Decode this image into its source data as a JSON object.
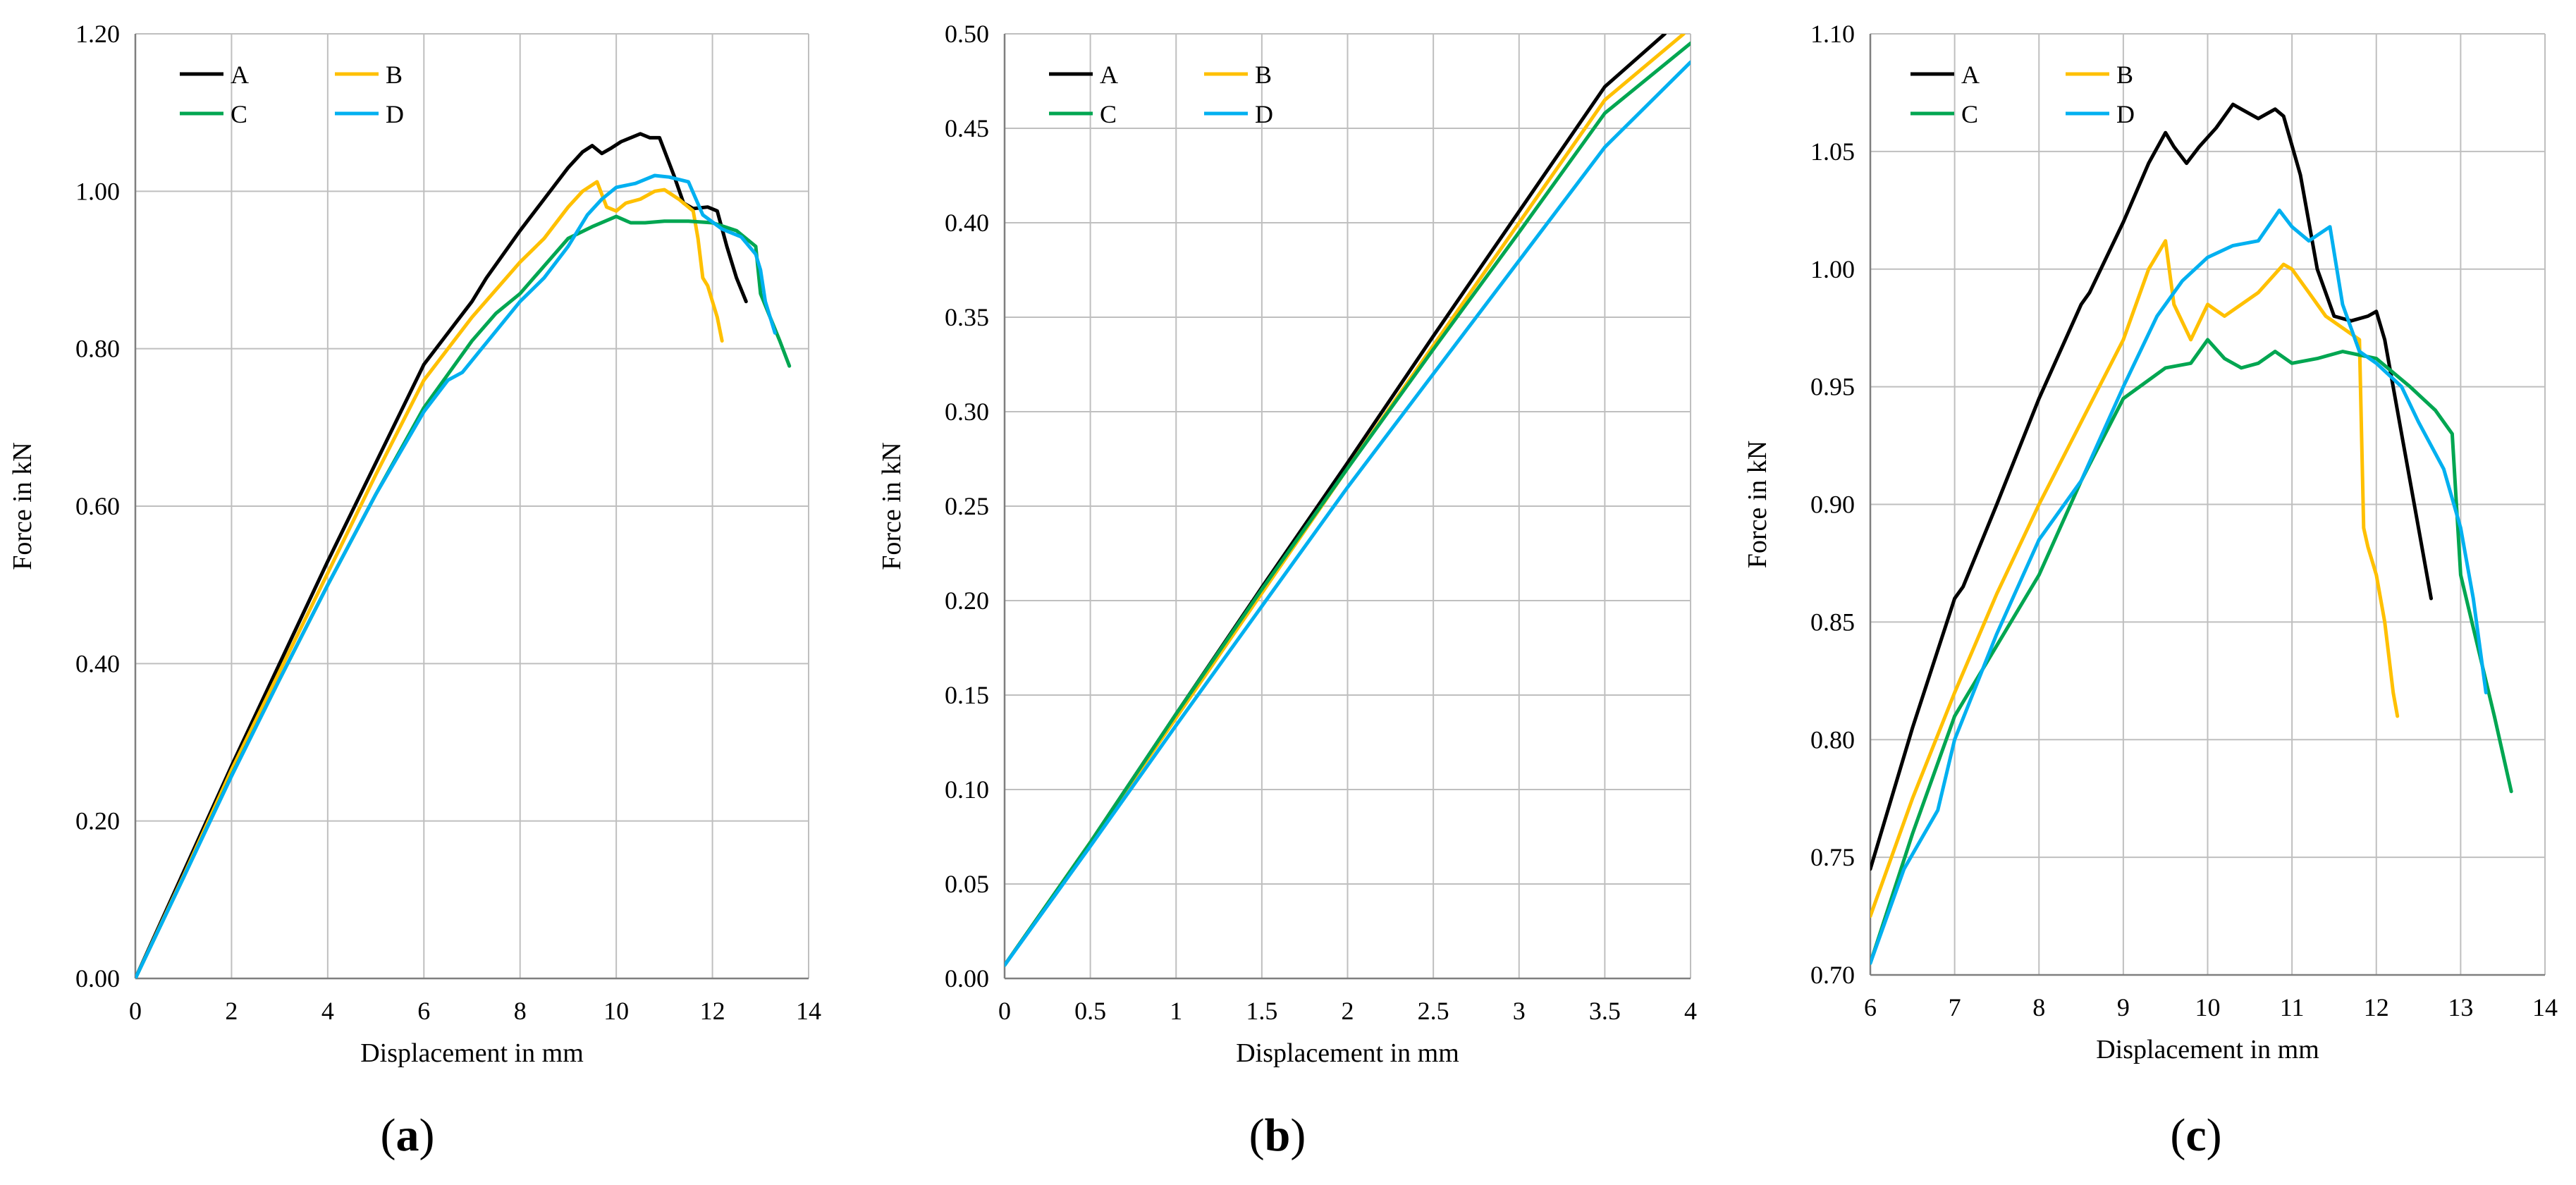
{
  "colors": {
    "A": "#000000",
    "B": "#FFC000",
    "C": "#00A651",
    "D": "#00B0F0",
    "grid": "#BFBFBF"
  },
  "chart_data": [
    {
      "type": "line",
      "panel_label": "a",
      "xlabel": "Displacement in mm",
      "ylabel": "Force in kN",
      "xlim": [
        0,
        14
      ],
      "ylim": [
        0,
        1.2
      ],
      "xticks": [
        "0",
        "2",
        "4",
        "6",
        "8",
        "10",
        "12",
        "14"
      ],
      "yticks": [
        "0.00",
        "0.20",
        "0.40",
        "0.60",
        "0.80",
        "1.00",
        "1.20"
      ],
      "legend": [
        "A",
        "B",
        "C",
        "D"
      ],
      "series": [
        {
          "name": "A",
          "x": [
            0,
            1,
            2,
            3,
            4,
            5,
            6,
            7,
            7.3,
            8,
            8.5,
            9,
            9.3,
            9.5,
            9.7,
            9.9,
            10.1,
            10.3,
            10.5,
            10.7,
            10.9,
            11.2,
            11.4,
            11.6,
            11.9,
            12.1,
            12.3,
            12.5,
            12.7
          ],
          "y": [
            0.0,
            0.135,
            0.27,
            0.4,
            0.53,
            0.655,
            0.78,
            0.86,
            0.89,
            0.95,
            0.99,
            1.03,
            1.05,
            1.058,
            1.048,
            1.055,
            1.063,
            1.068,
            1.073,
            1.068,
            1.068,
            1.02,
            0.985,
            0.978,
            0.98,
            0.975,
            0.93,
            0.89,
            0.86
          ]
        },
        {
          "name": "B",
          "x": [
            0,
            1,
            2,
            3,
            4,
            5,
            6,
            7,
            8,
            8.5,
            9,
            9.3,
            9.6,
            9.8,
            10,
            10.2,
            10.5,
            10.8,
            11,
            11.3,
            11.6,
            11.7,
            11.8,
            11.9,
            12.0,
            12.1,
            12.2
          ],
          "y": [
            0.0,
            0.13,
            0.265,
            0.39,
            0.515,
            0.64,
            0.76,
            0.84,
            0.91,
            0.94,
            0.98,
            1.0,
            1.012,
            0.98,
            0.975,
            0.985,
            0.99,
            1.0,
            1.002,
            0.99,
            0.975,
            0.94,
            0.89,
            0.88,
            0.86,
            0.84,
            0.81
          ]
        },
        {
          "name": "C",
          "x": [
            0,
            1,
            2,
            3,
            4,
            5,
            6,
            7,
            7.5,
            8,
            8.5,
            9,
            9.5,
            10,
            10.3,
            10.6,
            11,
            11.5,
            12,
            12.5,
            12.9,
            13.0,
            13.2,
            13.4,
            13.6
          ],
          "y": [
            0.0,
            0.128,
            0.258,
            0.38,
            0.5,
            0.615,
            0.725,
            0.81,
            0.845,
            0.87,
            0.905,
            0.94,
            0.955,
            0.968,
            0.96,
            0.96,
            0.962,
            0.962,
            0.96,
            0.95,
            0.93,
            0.87,
            0.84,
            0.81,
            0.778
          ]
        },
        {
          "name": "D",
          "x": [
            0,
            1,
            2,
            3,
            4,
            5,
            6,
            6.5,
            6.8,
            7.2,
            7.6,
            8,
            8.5,
            9,
            9.4,
            9.7,
            10,
            10.4,
            10.8,
            11.1,
            11.3,
            11.5,
            11.8,
            12.2,
            12.6,
            12.9,
            13.0,
            13.1,
            13.3
          ],
          "y": [
            0.0,
            0.128,
            0.257,
            0.38,
            0.5,
            0.615,
            0.72,
            0.76,
            0.77,
            0.8,
            0.83,
            0.86,
            0.89,
            0.93,
            0.97,
            0.99,
            1.005,
            1.01,
            1.02,
            1.018,
            1.015,
            1.012,
            0.97,
            0.952,
            0.942,
            0.92,
            0.9,
            0.86,
            0.82
          ]
        }
      ]
    },
    {
      "type": "line",
      "panel_label": "b",
      "xlabel": "Displacement in mm",
      "ylabel": "Force in kN",
      "xlim": [
        0,
        4
      ],
      "ylim": [
        0,
        0.5
      ],
      "xticks": [
        "0",
        "0.5",
        "1",
        "1.5",
        "2",
        "2.5",
        "3",
        "3.5",
        "4"
      ],
      "yticks": [
        "0.00",
        "0.05",
        "0.10",
        "0.15",
        "0.20",
        "0.25",
        "0.30",
        "0.35",
        "0.40",
        "0.45",
        "0.50"
      ],
      "legend": [
        "A",
        "B",
        "C",
        "D"
      ],
      "series": [
        {
          "name": "A",
          "x": [
            0,
            0.5,
            1,
            1.5,
            2,
            2.5,
            3,
            3.5,
            3.85
          ],
          "y": [
            0.007,
            0.072,
            0.14,
            0.207,
            0.273,
            0.34,
            0.406,
            0.472,
            0.5
          ]
        },
        {
          "name": "B",
          "x": [
            0,
            0.5,
            1,
            1.5,
            2,
            2.5,
            3,
            3.5,
            3.96
          ],
          "y": [
            0.007,
            0.072,
            0.138,
            0.204,
            0.27,
            0.335,
            0.4,
            0.465,
            0.5
          ]
        },
        {
          "name": "C",
          "x": [
            0,
            0.5,
            1,
            1.5,
            2,
            2.5,
            3,
            3.5,
            4.0
          ],
          "y": [
            0.007,
            0.072,
            0.14,
            0.206,
            0.27,
            0.333,
            0.395,
            0.458,
            0.495
          ]
        },
        {
          "name": "D",
          "x": [
            0,
            0.5,
            1,
            1.5,
            2,
            2.5,
            3,
            3.5,
            4.0
          ],
          "y": [
            0.007,
            0.07,
            0.134,
            0.197,
            0.26,
            0.32,
            0.38,
            0.44,
            0.485
          ]
        }
      ]
    },
    {
      "type": "line",
      "panel_label": "c",
      "xlabel": "Displacement in mm",
      "ylabel": "Force in kN",
      "xlim": [
        6,
        14
      ],
      "ylim": [
        0.7,
        1.1
      ],
      "xticks": [
        "6",
        "7",
        "8",
        "9",
        "10",
        "11",
        "12",
        "13",
        "14"
      ],
      "yticks": [
        "0.70",
        "0.75",
        "0.80",
        "0.85",
        "0.90",
        "0.95",
        "1.00",
        "1.05",
        "1.10"
      ],
      "legend": [
        "A",
        "B",
        "C",
        "D"
      ],
      "series": [
        {
          "name": "A",
          "x": [
            6.0,
            6.5,
            7.0,
            7.1,
            7.5,
            8.0,
            8.5,
            8.6,
            9.0,
            9.3,
            9.5,
            9.6,
            9.75,
            9.9,
            10.1,
            10.3,
            10.4,
            10.6,
            10.8,
            10.9,
            11.1,
            11.3,
            11.5,
            11.7,
            11.9,
            12.0,
            12.1,
            12.3,
            12.5,
            12.65
          ],
          "y": [
            0.745,
            0.805,
            0.86,
            0.865,
            0.9,
            0.945,
            0.985,
            0.99,
            1.02,
            1.045,
            1.058,
            1.052,
            1.045,
            1.052,
            1.06,
            1.07,
            1.068,
            1.064,
            1.068,
            1.065,
            1.04,
            1.0,
            0.98,
            0.978,
            0.98,
            0.982,
            0.97,
            0.93,
            0.89,
            0.86
          ]
        },
        {
          "name": "B",
          "x": [
            6.0,
            6.5,
            7.0,
            7.5,
            8.0,
            8.5,
            9.0,
            9.3,
            9.5,
            9.6,
            9.8,
            10.0,
            10.2,
            10.4,
            10.6,
            10.9,
            11.0,
            11.2,
            11.4,
            11.6,
            11.8,
            11.85,
            11.9,
            12.0,
            12.1,
            12.2,
            12.25
          ],
          "y": [
            0.725,
            0.775,
            0.82,
            0.862,
            0.9,
            0.935,
            0.97,
            1.0,
            1.012,
            0.985,
            0.97,
            0.985,
            0.98,
            0.985,
            0.99,
            1.002,
            1.0,
            0.99,
            0.98,
            0.975,
            0.97,
            0.89,
            0.882,
            0.87,
            0.85,
            0.82,
            0.81
          ]
        },
        {
          "name": "C",
          "x": [
            6.0,
            6.5,
            7.0,
            7.5,
            8.0,
            8.5,
            9.0,
            9.5,
            9.8,
            10.0,
            10.2,
            10.4,
            10.6,
            10.8,
            11.0,
            11.3,
            11.6,
            12.0,
            12.4,
            12.7,
            12.9,
            13.0,
            13.2,
            13.4,
            13.6
          ],
          "y": [
            0.705,
            0.76,
            0.81,
            0.84,
            0.87,
            0.91,
            0.945,
            0.958,
            0.96,
            0.97,
            0.962,
            0.958,
            0.96,
            0.965,
            0.96,
            0.962,
            0.965,
            0.962,
            0.95,
            0.94,
            0.93,
            0.87,
            0.84,
            0.81,
            0.778
          ]
        },
        {
          "name": "D",
          "x": [
            6.0,
            6.4,
            6.8,
            7.0,
            7.5,
            8.0,
            8.5,
            9.0,
            9.4,
            9.7,
            10.0,
            10.3,
            10.6,
            10.85,
            11.0,
            11.2,
            11.45,
            11.6,
            11.8,
            12.0,
            12.3,
            12.5,
            12.8,
            13.0,
            13.15,
            13.3
          ],
          "y": [
            0.705,
            0.745,
            0.77,
            0.8,
            0.845,
            0.885,
            0.91,
            0.95,
            0.98,
            0.995,
            1.005,
            1.01,
            1.012,
            1.025,
            1.018,
            1.012,
            1.018,
            0.985,
            0.965,
            0.96,
            0.95,
            0.935,
            0.915,
            0.89,
            0.86,
            0.82
          ]
        }
      ]
    }
  ]
}
